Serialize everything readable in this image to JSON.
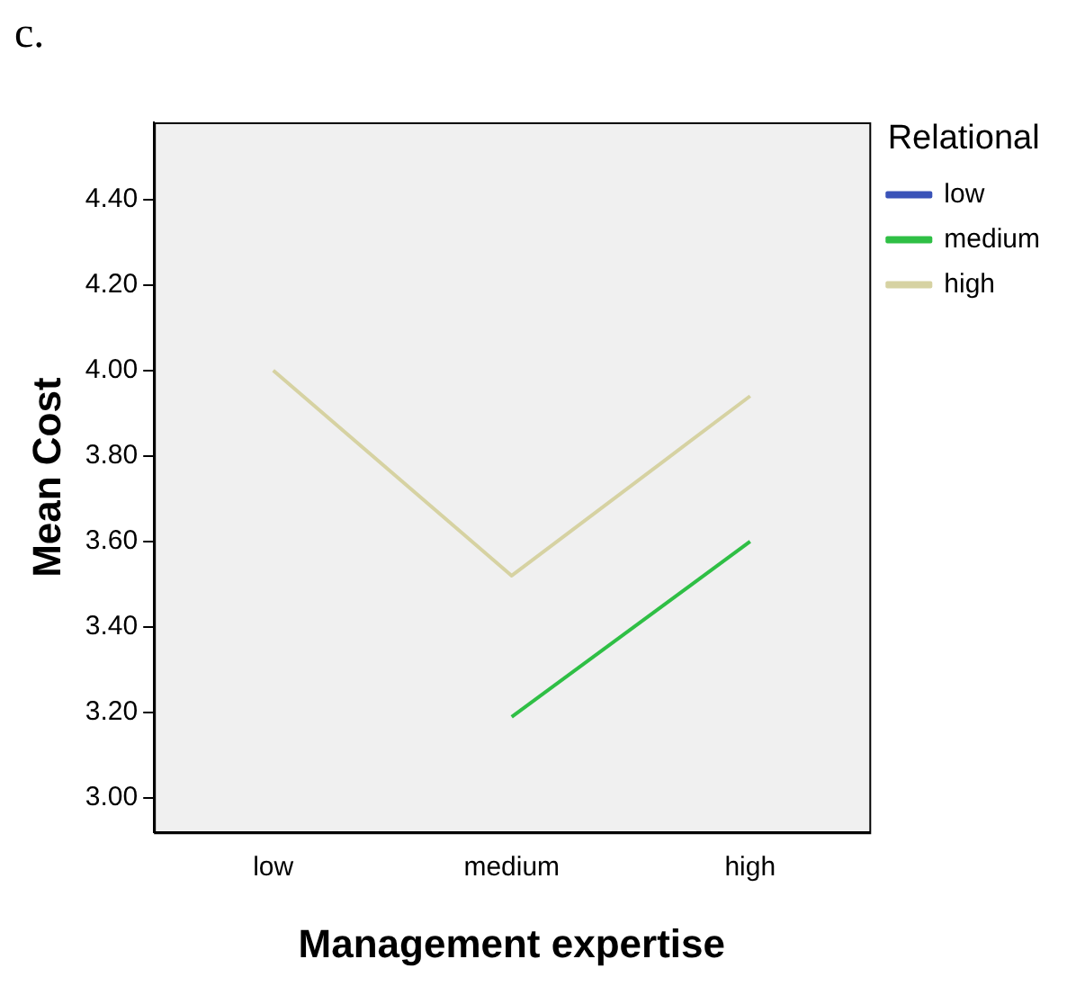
{
  "chart_data": {
    "type": "line",
    "xlabel": "Management expertise",
    "ylabel": "Mean Cost",
    "legend_title": "Relational",
    "legend": "right",
    "annotations": [
      "c."
    ],
    "categories": [
      "low",
      "medium",
      "high"
    ],
    "series": [
      {
        "name": "low",
        "color": "#3a53b8",
        "values": [
          null,
          null,
          null
        ]
      },
      {
        "name": "medium",
        "color": "#2fbf45",
        "values": [
          null,
          3.19,
          3.6
        ]
      },
      {
        "name": "high",
        "color": "#d6d2a2",
        "values": [
          4.0,
          3.52,
          3.94
        ]
      }
    ],
    "ylim": [
      2.92,
      4.58
    ],
    "yticks": [
      {
        "value": 3.0,
        "label": "3.00"
      },
      {
        "value": 3.2,
        "label": "3.20"
      },
      {
        "value": 3.4,
        "label": "3.40"
      },
      {
        "value": 3.6,
        "label": "3.60"
      },
      {
        "value": 3.8,
        "label": "3.80"
      },
      {
        "value": 4.0,
        "label": "4.00"
      },
      {
        "value": 4.2,
        "label": "4.20"
      },
      {
        "value": 4.4,
        "label": "4.40"
      }
    ],
    "grid": false,
    "marker": "none"
  }
}
